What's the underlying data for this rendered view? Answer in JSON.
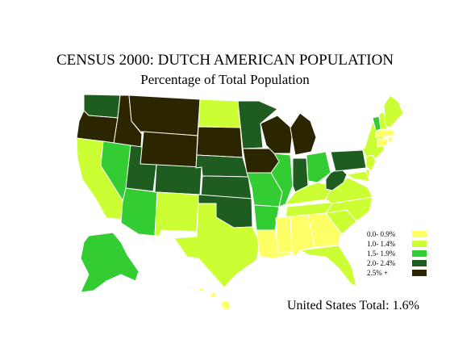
{
  "title": "CENSUS 2000: DUTCH AMERICAN POPULATION",
  "subtitle": "Percentage of Total Population",
  "total_text": "United States Total: 1.6%",
  "legend": [
    {
      "label": "0.0- 0.9%",
      "color": "#ffff66"
    },
    {
      "label": "1.0- 1.4%",
      "color": "#ccff33"
    },
    {
      "label": "1.5- 1.9%",
      "color": "#33cc33"
    },
    {
      "label": "2.0- 2.4%",
      "color": "#1f5c1f"
    },
    {
      "label": "2.5% +",
      "color": "#2b2600"
    }
  ],
  "colors": {
    "c0": "#ffff66",
    "c1": "#ccff33",
    "c2": "#33cc33",
    "c3": "#1f5c1f",
    "c4": "#2b2600",
    "border": "#ffffff"
  },
  "states": [
    {
      "name": "Washington",
      "class": 3
    },
    {
      "name": "Oregon",
      "class": 4
    },
    {
      "name": "California",
      "class": 1
    },
    {
      "name": "Idaho",
      "class": 4
    },
    {
      "name": "Nevada",
      "class": 2
    },
    {
      "name": "Montana",
      "class": 4
    },
    {
      "name": "Wyoming",
      "class": 4
    },
    {
      "name": "Utah",
      "class": 3
    },
    {
      "name": "Arizona",
      "class": 2
    },
    {
      "name": "Colorado",
      "class": 3
    },
    {
      "name": "New Mexico",
      "class": 1
    },
    {
      "name": "North Dakota",
      "class": 1
    },
    {
      "name": "South Dakota",
      "class": 4
    },
    {
      "name": "Nebraska",
      "class": 3
    },
    {
      "name": "Kansas",
      "class": 3
    },
    {
      "name": "Oklahoma",
      "class": 3
    },
    {
      "name": "Texas",
      "class": 1
    },
    {
      "name": "Minnesota",
      "class": 3
    },
    {
      "name": "Iowa",
      "class": 4
    },
    {
      "name": "Missouri",
      "class": 2
    },
    {
      "name": "Arkansas",
      "class": 2
    },
    {
      "name": "Louisiana",
      "class": 0
    },
    {
      "name": "Wisconsin",
      "class": 4
    },
    {
      "name": "Illinois",
      "class": 2
    },
    {
      "name": "Michigan",
      "class": 4
    },
    {
      "name": "Indiana",
      "class": 3
    },
    {
      "name": "Ohio",
      "class": 2
    },
    {
      "name": "Kentucky",
      "class": 1
    },
    {
      "name": "Tennessee",
      "class": 1
    },
    {
      "name": "Mississippi",
      "class": 0
    },
    {
      "name": "Alabama",
      "class": 0
    },
    {
      "name": "Georgia",
      "class": 0
    },
    {
      "name": "Florida",
      "class": 1
    },
    {
      "name": "South Carolina",
      "class": 1
    },
    {
      "name": "North Carolina",
      "class": 1
    },
    {
      "name": "Virginia",
      "class": 1
    },
    {
      "name": "West Virginia",
      "class": 3
    },
    {
      "name": "Pennsylvania",
      "class": 3
    },
    {
      "name": "New York",
      "class": 1
    },
    {
      "name": "Vermont",
      "class": 2
    },
    {
      "name": "New Hampshire",
      "class": 1
    },
    {
      "name": "Maine",
      "class": 1
    },
    {
      "name": "Massachusetts",
      "class": 0
    },
    {
      "name": "Rhode Island",
      "class": 0
    },
    {
      "name": "Connecticut",
      "class": 0
    },
    {
      "name": "New Jersey",
      "class": 1
    },
    {
      "name": "Delaware",
      "class": 1
    },
    {
      "name": "Maryland",
      "class": 1
    },
    {
      "name": "Alaska",
      "class": 2
    },
    {
      "name": "Hawaii",
      "class": 0
    }
  ]
}
